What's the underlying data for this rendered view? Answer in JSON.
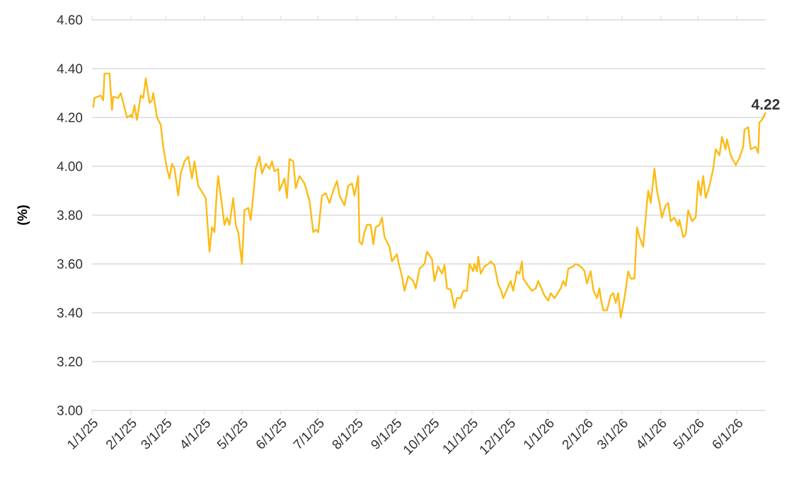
{
  "chart_data": {
    "type": "line",
    "ylabel": "(%)",
    "color": "#fdbb13",
    "grid": "y",
    "xlim": [
      "2025-01-01",
      "2026-06-24"
    ],
    "ylim": [
      3.0,
      4.6
    ],
    "yticks": [
      {
        "value": 3.0,
        "label": "3.00"
      },
      {
        "value": 3.2,
        "label": "3.20"
      },
      {
        "value": 3.4,
        "label": "3.40"
      },
      {
        "value": 3.6,
        "label": "3.60"
      },
      {
        "value": 3.8,
        "label": "3.80"
      },
      {
        "value": 4.0,
        "label": "4.00"
      },
      {
        "value": 4.2,
        "label": "4.20"
      },
      {
        "value": 4.4,
        "label": "4.40"
      },
      {
        "value": 4.6,
        "label": "4.60"
      }
    ],
    "xticks": [
      {
        "value": "2025-01-01",
        "label": "1/1/25"
      },
      {
        "value": "2025-02-01",
        "label": "2/1/25"
      },
      {
        "value": "2025-03-01",
        "label": "3/1/25"
      },
      {
        "value": "2025-04-01",
        "label": "4/1/25"
      },
      {
        "value": "2025-05-01",
        "label": "5/1/25"
      },
      {
        "value": "2025-06-01",
        "label": "6/1/25"
      },
      {
        "value": "2025-07-01",
        "label": "7/1/25"
      },
      {
        "value": "2025-08-01",
        "label": "8/1/25"
      },
      {
        "value": "2025-09-01",
        "label": "9/1/25"
      },
      {
        "value": "2025-10-01",
        "label": "10/1/25"
      },
      {
        "value": "2025-11-01",
        "label": "11/1/25"
      },
      {
        "value": "2025-12-01",
        "label": "12/1/25"
      },
      {
        "value": "2026-01-01",
        "label": "1/1/26"
      },
      {
        "value": "2026-02-01",
        "label": "2/1/26"
      },
      {
        "value": "2026-03-01",
        "label": "3/1/26"
      },
      {
        "value": "2026-04-01",
        "label": "4/1/26"
      },
      {
        "value": "2026-05-01",
        "label": "5/1/26"
      },
      {
        "value": "2026-06-01",
        "label": "6/1/26"
      }
    ],
    "annotations": [
      {
        "text": "4.22",
        "x": "2026-06-24",
        "y": 4.22
      }
    ],
    "x": [
      "2025-01-02",
      "2025-01-03",
      "2025-01-08",
      "2025-01-10",
      "2025-01-11",
      "2025-01-15",
      "2025-01-17",
      "2025-01-18",
      "2025-01-22",
      "2025-01-24",
      "2025-01-29",
      "2025-02-01",
      "2025-02-02",
      "2025-02-04",
      "2025-02-06",
      "2025-02-09",
      "2025-02-11",
      "2025-02-13",
      "2025-02-16",
      "2025-02-18",
      "2025-02-19",
      "2025-02-22",
      "2025-02-25",
      "2025-02-27",
      "2025-03-02",
      "2025-03-04",
      "2025-03-06",
      "2025-03-08",
      "2025-03-11",
      "2025-03-13",
      "2025-03-16",
      "2025-03-19",
      "2025-03-22",
      "2025-03-24",
      "2025-03-27",
      "2025-04-02",
      "2025-04-05",
      "2025-04-07",
      "2025-04-09",
      "2025-04-11",
      "2025-04-12",
      "2025-04-15",
      "2025-04-17",
      "2025-04-19",
      "2025-04-21",
      "2025-04-24",
      "2025-04-26",
      "2025-04-28",
      "2025-05-01",
      "2025-05-03",
      "2025-05-06",
      "2025-05-08",
      "2025-05-10",
      "2025-05-12",
      "2025-05-15",
      "2025-05-17",
      "2025-05-20",
      "2025-05-23",
      "2025-05-25",
      "2025-05-27",
      "2025-05-30",
      "2025-05-31",
      "2025-06-04",
      "2025-06-06",
      "2025-06-08",
      "2025-06-11",
      "2025-06-13",
      "2025-06-16",
      "2025-06-20",
      "2025-06-24",
      "2025-06-27",
      "2025-06-29",
      "2025-07-01",
      "2025-07-04",
      "2025-07-07",
      "2025-07-10",
      "2025-07-13",
      "2025-07-16",
      "2025-07-18",
      "2025-07-22",
      "2025-07-25",
      "2025-07-28",
      "2025-07-30",
      "2025-08-02",
      "2025-08-03",
      "2025-08-05",
      "2025-08-07",
      "2025-08-09",
      "2025-08-12",
      "2025-08-14",
      "2025-08-16",
      "2025-08-19",
      "2025-08-21",
      "2025-08-23",
      "2025-08-27",
      "2025-08-29",
      "2025-09-02",
      "2025-09-03",
      "2025-09-06",
      "2025-09-08",
      "2025-09-11",
      "2025-09-15",
      "2025-09-17",
      "2025-09-20",
      "2025-09-24",
      "2025-09-26",
      "2025-09-30",
      "2025-10-02",
      "2025-10-05",
      "2025-10-08",
      "2025-10-10",
      "2025-10-12",
      "2025-10-15",
      "2025-10-18",
      "2025-10-20",
      "2025-10-23",
      "2025-10-25",
      "2025-10-28",
      "2025-10-30",
      "2025-11-02",
      "2025-11-03",
      "2025-11-05",
      "2025-11-06",
      "2025-11-08",
      "2025-11-11",
      "2025-11-14",
      "2025-11-16",
      "2025-11-19",
      "2025-11-22",
      "2025-11-24",
      "2025-11-26",
      "2025-11-29",
      "2025-12-02",
      "2025-12-04",
      "2025-12-07",
      "2025-12-09",
      "2025-12-11",
      "2025-12-12",
      "2025-12-16",
      "2025-12-19",
      "2025-12-22",
      "2025-12-24",
      "2025-12-27",
      "2025-12-29",
      "2026-01-01",
      "2026-01-03",
      "2026-01-06",
      "2026-01-08",
      "2026-01-11",
      "2026-01-13",
      "2026-01-15",
      "2026-01-17",
      "2026-01-21",
      "2026-01-23",
      "2026-01-27",
      "2026-01-30",
      "2026-02-01",
      "2026-02-04",
      "2026-02-06",
      "2026-02-09",
      "2026-02-11",
      "2026-02-12",
      "2026-02-14",
      "2026-02-17",
      "2026-02-20",
      "2026-02-22",
      "2026-02-24",
      "2026-02-26",
      "2026-02-28",
      "2026-03-03",
      "2026-03-06",
      "2026-03-08",
      "2026-03-11",
      "2026-03-13",
      "2026-03-15",
      "2026-03-18",
      "2026-03-21",
      "2026-03-22",
      "2026-03-24",
      "2026-03-27",
      "2026-03-29",
      "2026-03-31",
      "2026-04-02",
      "2026-04-05",
      "2026-04-07",
      "2026-04-09",
      "2026-04-12",
      "2026-04-15",
      "2026-04-16",
      "2026-04-19",
      "2026-04-21",
      "2026-04-23",
      "2026-04-26",
      "2026-04-29",
      "2026-05-01",
      "2026-05-03",
      "2026-05-05",
      "2026-05-07",
      "2026-05-10",
      "2026-05-13",
      "2026-05-15",
      "2026-05-18",
      "2026-05-20",
      "2026-05-23",
      "2026-05-24",
      "2026-05-27",
      "2026-05-31",
      "2026-06-03",
      "2026-06-06",
      "2026-06-07",
      "2026-06-10",
      "2026-06-12",
      "2026-06-16",
      "2026-06-18",
      "2026-06-19",
      "2026-06-21",
      "2026-06-22",
      "2026-06-24"
    ],
    "values": [
      4.24,
      4.28,
      4.29,
      4.27,
      4.38,
      4.38,
      4.23,
      4.285,
      4.28,
      4.3,
      4.2,
      4.21,
      4.2,
      4.25,
      4.19,
      4.29,
      4.28,
      4.36,
      4.26,
      4.27,
      4.3,
      4.2,
      4.17,
      4.08,
      3.99,
      3.95,
      4.01,
      3.99,
      3.88,
      3.97,
      4.02,
      4.04,
      3.95,
      4.02,
      3.92,
      3.87,
      3.65,
      3.75,
      3.73,
      3.91,
      3.96,
      3.84,
      3.76,
      3.79,
      3.76,
      3.87,
      3.76,
      3.73,
      3.6,
      3.82,
      3.83,
      3.78,
      3.88,
      3.99,
      4.04,
      3.97,
      4.01,
      3.99,
      4.02,
      3.98,
      3.99,
      3.9,
      3.95,
      3.87,
      4.03,
      4.02,
      3.91,
      3.96,
      3.93,
      3.86,
      3.73,
      3.74,
      3.73,
      3.88,
      3.89,
      3.85,
      3.9,
      3.94,
      3.88,
      3.84,
      3.92,
      3.93,
      3.88,
      3.96,
      3.69,
      3.68,
      3.73,
      3.76,
      3.76,
      3.68,
      3.75,
      3.76,
      3.79,
      3.71,
      3.67,
      3.61,
      3.64,
      3.61,
      3.55,
      3.49,
      3.55,
      3.53,
      3.5,
      3.58,
      3.6,
      3.65,
      3.62,
      3.53,
      3.59,
      3.56,
      3.595,
      3.5,
      3.495,
      3.42,
      3.46,
      3.46,
      3.49,
      3.49,
      3.6,
      3.57,
      3.6,
      3.57,
      3.63,
      3.56,
      3.59,
      3.6,
      3.61,
      3.595,
      3.515,
      3.495,
      3.46,
      3.495,
      3.53,
      3.49,
      3.57,
      3.56,
      3.61,
      3.54,
      3.51,
      3.49,
      3.5,
      3.53,
      3.495,
      3.47,
      3.45,
      3.48,
      3.46,
      3.475,
      3.5,
      3.53,
      3.51,
      3.58,
      3.59,
      3.6,
      3.59,
      3.57,
      3.52,
      3.57,
      3.495,
      3.46,
      3.5,
      3.46,
      3.41,
      3.41,
      3.47,
      3.48,
      3.44,
      3.48,
      3.38,
      3.46,
      3.57,
      3.54,
      3.54,
      3.75,
      3.71,
      3.67,
      3.85,
      3.9,
      3.85,
      3.99,
      3.9,
      3.85,
      3.79,
      3.84,
      3.85,
      3.775,
      3.79,
      3.755,
      3.78,
      3.71,
      3.72,
      3.82,
      3.775,
      3.79,
      3.94,
      3.88,
      3.96,
      3.87,
      3.92,
      3.99,
      4.07,
      4.045,
      4.12,
      4.07,
      4.11,
      4.045,
      4.005,
      4.035,
      4.08,
      4.15,
      4.16,
      4.07,
      4.08,
      4.055,
      4.18,
      4.19,
      4.2,
      4.22
    ]
  }
}
